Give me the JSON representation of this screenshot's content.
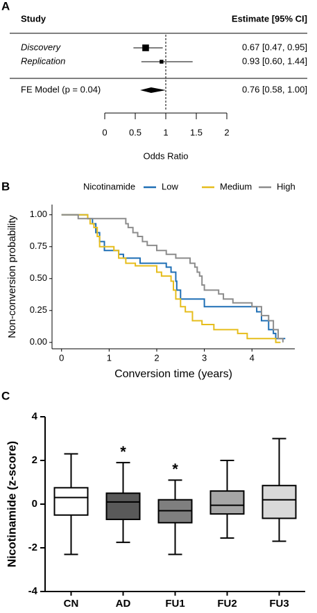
{
  "chart_data": [
    {
      "type": "forest",
      "panel": "A",
      "study_header": "Study",
      "estimate_header": "Estimate [95% CI]",
      "categories": [
        "Discovery",
        "Replication"
      ],
      "values": [
        0.67,
        0.93
      ],
      "lower": [
        0.47,
        0.6
      ],
      "upper": [
        0.95,
        1.44
      ],
      "value_labels": [
        "0.67 [0.47, 0.95]",
        "0.93 [0.60, 1.44]"
      ],
      "summary": {
        "label": "FE Model (p = 0.04)",
        "value": 0.76,
        "lower": 0.58,
        "upper": 1.0,
        "value_label": "0.76 [0.58, 1.00]"
      },
      "xlabel": "Odds Ratio",
      "xlim": [
        0,
        2
      ],
      "xticks": [
        0,
        0.5,
        1,
        1.5,
        2
      ],
      "ref_line": 1,
      "color": "#000000"
    },
    {
      "type": "step",
      "panel": "B",
      "legend_title": "Nicotinamide",
      "xlabel": "Conversion time (years)",
      "ylabel": "Non-conversion probability",
      "xlim": [
        -0.2,
        4.9
      ],
      "xticks": [
        0,
        1,
        2,
        3,
        4
      ],
      "ylim": [
        -0.05,
        1.08
      ],
      "yticks": [
        {
          "value": 0,
          "label": "0.00"
        },
        {
          "value": 0.25,
          "label": "0.25"
        },
        {
          "value": 0.5,
          "label": "0.50"
        },
        {
          "value": 0.75,
          "label": "0.75"
        },
        {
          "value": 1,
          "label": "1.00"
        }
      ],
      "series": [
        {
          "name": "Low",
          "color": "#1f6fb5",
          "x": [
            0,
            0.55,
            0.65,
            0.72,
            0.8,
            0.9,
            1.2,
            1.3,
            1.65,
            2.2,
            2.3,
            2.4,
            2.42,
            2.5,
            3.0,
            4.1,
            4.2,
            4.35,
            4.45,
            4.5,
            4.7
          ],
          "values": [
            1.0,
            0.97,
            0.93,
            0.86,
            0.79,
            0.72,
            0.69,
            0.66,
            0.62,
            0.59,
            0.55,
            0.48,
            0.41,
            0.34,
            0.28,
            0.24,
            0.17,
            0.1,
            0.07,
            0.03,
            0.03
          ]
        },
        {
          "name": "Medium",
          "color": "#e6bd1c",
          "x": [
            0,
            0.55,
            0.6,
            0.68,
            0.75,
            0.8,
            1.1,
            1.2,
            1.35,
            1.55,
            2.0,
            2.1,
            2.3,
            2.35,
            2.4,
            2.5,
            2.6,
            2.75,
            2.95,
            3.2,
            3.7,
            3.9,
            4.5,
            4.6
          ],
          "values": [
            1.0,
            0.97,
            0.93,
            0.9,
            0.83,
            0.75,
            0.72,
            0.66,
            0.62,
            0.6,
            0.55,
            0.52,
            0.48,
            0.41,
            0.34,
            0.28,
            0.24,
            0.17,
            0.14,
            0.1,
            0.07,
            0.03,
            0.0,
            0.0
          ]
        },
        {
          "name": "High",
          "color": "#8c8c8c",
          "x": [
            0,
            0.35,
            1.35,
            1.4,
            1.5,
            1.6,
            1.7,
            1.8,
            2.0,
            2.2,
            2.4,
            2.7,
            2.8,
            2.85,
            2.9,
            2.95,
            3.0,
            3.3,
            3.4,
            3.6,
            4.0,
            4.2,
            4.35,
            4.45,
            4.55,
            4.65
          ],
          "values": [
            1.0,
            0.97,
            0.93,
            0.9,
            0.86,
            0.83,
            0.79,
            0.76,
            0.72,
            0.69,
            0.66,
            0.62,
            0.59,
            0.55,
            0.52,
            0.45,
            0.41,
            0.38,
            0.34,
            0.31,
            0.28,
            0.21,
            0.17,
            0.1,
            0.03,
            0.0
          ]
        }
      ]
    },
    {
      "type": "box",
      "panel": "C",
      "ylabel": "Nicotinamide (z-score)",
      "categories": [
        "CN",
        "AD",
        "FU1",
        "FU2",
        "FU3"
      ],
      "min": [
        -2.3,
        -1.75,
        -2.3,
        -1.55,
        -1.7
      ],
      "q1": [
        -0.5,
        -0.7,
        -0.85,
        -0.45,
        -0.65
      ],
      "median": [
        0.3,
        0.1,
        -0.3,
        -0.05,
        0.2
      ],
      "q3": [
        0.75,
        0.5,
        0.2,
        0.6,
        0.85
      ],
      "max": [
        2.3,
        1.9,
        1.1,
        2.0,
        3.0
      ],
      "colors": [
        "#ffffff",
        "#595959",
        "#7f7f7f",
        "#a6a6a6",
        "#d9d9d9"
      ],
      "significance": [
        null,
        "*",
        "*",
        null,
        null
      ],
      "ylim": [
        -4,
        4
      ],
      "yticks": [
        -4,
        -2,
        0,
        2,
        4
      ]
    }
  ]
}
